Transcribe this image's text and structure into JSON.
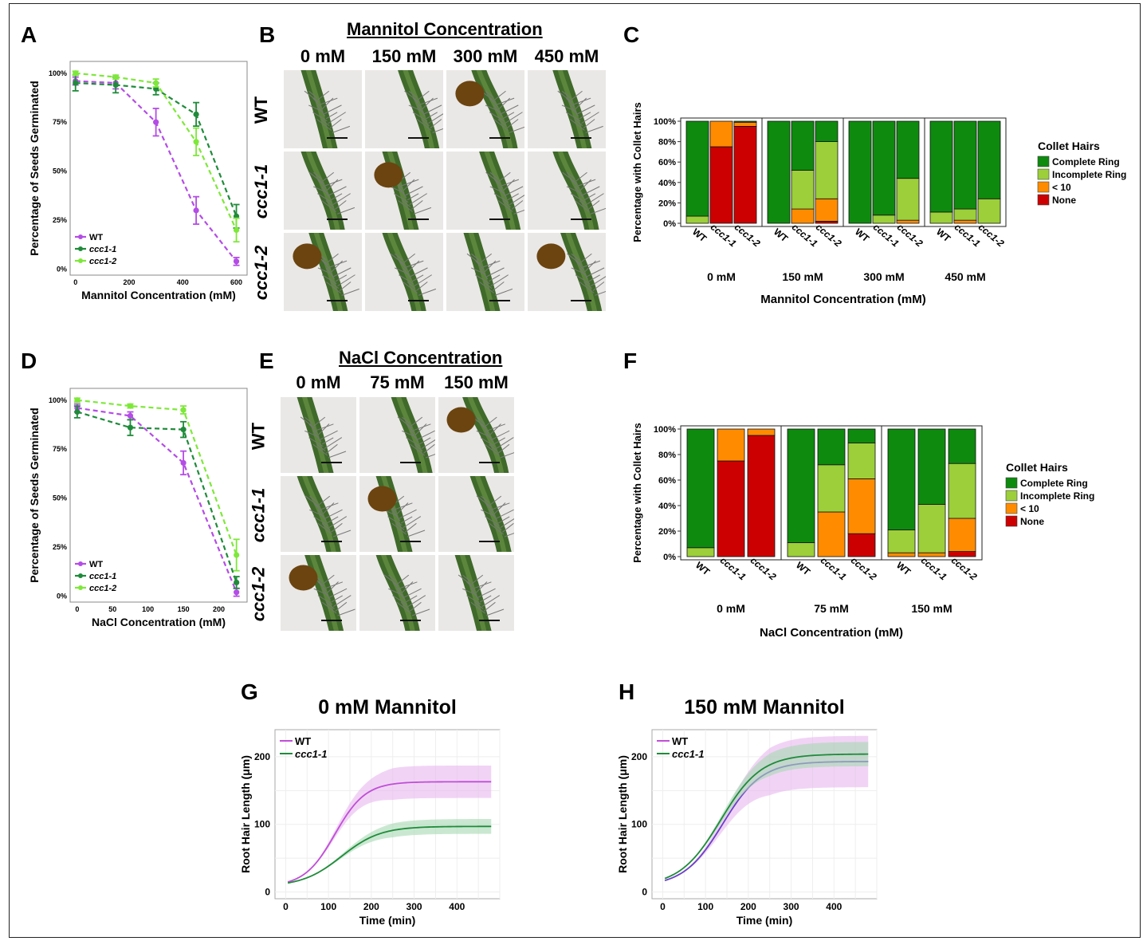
{
  "panel_labels": {
    "a": "A",
    "b": "B",
    "c": "C",
    "d": "D",
    "e": "E",
    "f": "F",
    "g": "G",
    "h": "H"
  },
  "colors": {
    "wt": "#b44ce6",
    "ccc11": "#1f8b3a",
    "ccc12": "#7ee83a",
    "complete": "#0e8a0e",
    "incomplete": "#9ccf3a",
    "lt10": "#ff8c00",
    "none": "#cc0000",
    "wt_ribbon": "#e7b8ef",
    "ccc_ribbon": "#a6d9b3"
  },
  "photo_b": {
    "title": "Mannitol Concentration",
    "cols": [
      "0 mM",
      "150 mM",
      "300 mM",
      "450 mM"
    ],
    "rows": [
      "WT",
      "ccc1-1",
      "ccc1-2"
    ]
  },
  "photo_e": {
    "title": "NaCl Concentration",
    "cols": [
      "0 mM",
      "75 mM",
      "150 mM"
    ],
    "rows": [
      "WT",
      "ccc1-1",
      "ccc1-2"
    ]
  },
  "chart_data": [
    {
      "id": "A",
      "type": "line",
      "xlabel": "Mannitol Concentration (mM)",
      "ylabel": "Percentage of Seeds Germinated",
      "xticks": [
        0,
        200,
        400,
        600
      ],
      "yticks": [
        "0%",
        "25%",
        "50%",
        "75%",
        "100%"
      ],
      "xlim": [
        -20,
        640
      ],
      "ylim": [
        -3,
        106
      ],
      "legend": [
        "WT",
        "ccc1-1",
        "ccc1-2"
      ],
      "series": [
        {
          "name": "WT",
          "x": [
            0,
            150,
            300,
            450,
            600
          ],
          "y": [
            96,
            95,
            75,
            30,
            4
          ],
          "err": [
            2,
            3,
            7,
            7,
            2
          ]
        },
        {
          "name": "ccc1-1",
          "x": [
            0,
            150,
            300,
            450,
            600
          ],
          "y": [
            95,
            94,
            92,
            79,
            27
          ],
          "err": [
            4,
            4,
            3,
            6,
            6
          ]
        },
        {
          "name": "ccc1-2",
          "x": [
            0,
            150,
            300,
            450,
            600
          ],
          "y": [
            100,
            98,
            95,
            65,
            20
          ],
          "err": [
            1,
            1,
            2,
            7,
            6
          ]
        }
      ]
    },
    {
      "id": "C",
      "type": "bar",
      "xlabel": "Mannitol Concentration (mM)",
      "ylabel": "Percentage with Collet Hairs",
      "yticks": [
        "0%",
        "20%",
        "40%",
        "60%",
        "80%",
        "100%"
      ],
      "legend_title": "Collet Hairs",
      "legend": [
        "Complete Ring",
        "Incomplete Ring",
        "< 10",
        "None"
      ],
      "groups": [
        "0 mM",
        "150 mM",
        "300 mM",
        "450 mM"
      ],
      "bars": [
        "WT",
        "ccc1-1",
        "ccc1-2"
      ],
      "stack_order": [
        "None",
        "< 10",
        "Incomplete Ring",
        "Complete Ring"
      ],
      "values": [
        [
          [
            0,
            0,
            7,
            93
          ],
          [
            75,
            25,
            0,
            0
          ],
          [
            95,
            4,
            0,
            1
          ]
        ],
        [
          [
            0,
            0,
            0,
            100
          ],
          [
            0,
            14,
            38,
            48
          ],
          [
            2,
            22,
            56,
            20
          ]
        ],
        [
          [
            0,
            0,
            0,
            100
          ],
          [
            0,
            0,
            8,
            92
          ],
          [
            0,
            3,
            41,
            56
          ]
        ],
        [
          [
            0,
            0,
            11,
            89
          ],
          [
            0,
            3,
            11,
            86
          ],
          [
            0,
            0,
            24,
            76
          ]
        ]
      ]
    },
    {
      "id": "D",
      "type": "line",
      "xlabel": "NaCl Concentration (mM)",
      "ylabel": "Percentage of Seeds Germinated",
      "xticks": [
        0,
        50,
        100,
        150,
        200
      ],
      "yticks": [
        "0%",
        "25%",
        "50%",
        "75%",
        "100%"
      ],
      "xlim": [
        -10,
        240
      ],
      "ylim": [
        -3,
        106
      ],
      "legend": [
        "WT",
        "ccc1-1",
        "ccc1-2"
      ],
      "series": [
        {
          "name": "WT",
          "x": [
            0,
            75,
            150,
            225
          ],
          "y": [
            96,
            92,
            68,
            2
          ],
          "err": [
            2,
            2,
            6,
            2
          ]
        },
        {
          "name": "ccc1-1",
          "x": [
            0,
            75,
            150,
            225
          ],
          "y": [
            94,
            86,
            85,
            7
          ],
          "err": [
            3,
            4,
            4,
            3
          ]
        },
        {
          "name": "ccc1-2",
          "x": [
            0,
            75,
            150,
            225
          ],
          "y": [
            100,
            97,
            95,
            21
          ],
          "err": [
            1,
            1,
            2,
            8
          ]
        }
      ]
    },
    {
      "id": "F",
      "type": "bar",
      "xlabel": "NaCl Concentration (mM)",
      "ylabel": "Percentage with Collet Hairs",
      "yticks": [
        "0%",
        "20%",
        "40%",
        "60%",
        "80%",
        "100%"
      ],
      "legend_title": "Collet Hairs",
      "legend": [
        "Complete Ring",
        "Incomplete Ring",
        "< 10",
        "None"
      ],
      "groups": [
        "0 mM",
        "75 mM",
        "150 mM"
      ],
      "bars": [
        "WT",
        "ccc1-1",
        "ccc1-2"
      ],
      "stack_order": [
        "None",
        "< 10",
        "Incomplete Ring",
        "Complete Ring"
      ],
      "values": [
        [
          [
            0,
            0,
            7,
            93
          ],
          [
            75,
            25,
            0,
            0
          ],
          [
            95,
            5,
            0,
            0
          ]
        ],
        [
          [
            0,
            0,
            11,
            89
          ],
          [
            0,
            35,
            37,
            28
          ],
          [
            18,
            43,
            28,
            11
          ]
        ],
        [
          [
            0,
            3,
            18,
            79
          ],
          [
            0,
            3,
            38,
            59
          ],
          [
            4,
            26,
            43,
            27
          ]
        ]
      ]
    },
    {
      "id": "G",
      "type": "line",
      "title": "0 mM Mannitol",
      "xlabel": "Time (min)",
      "ylabel": "Root Hair Length (μm)",
      "xticks": [
        0,
        100,
        200,
        300,
        400
      ],
      "yticks": [
        0,
        100,
        200
      ],
      "xlim": [
        -25,
        500
      ],
      "ylim": [
        -10,
        240
      ],
      "legend": [
        "WT",
        "ccc1-1"
      ],
      "series": [
        {
          "name": "WT",
          "plateau": 163,
          "k": 0.028,
          "x0": 115,
          "band": 24
        },
        {
          "name": "ccc1-1",
          "plateau": 97,
          "k": 0.022,
          "x0": 130,
          "band": 11
        }
      ]
    },
    {
      "id": "H",
      "type": "line",
      "title": "150 mM Mannitol",
      "xlabel": "Time (min)",
      "ylabel": "Root Hair Length (μm)",
      "xticks": [
        0,
        100,
        200,
        300,
        400
      ],
      "yticks": [
        0,
        100,
        200
      ],
      "xlim": [
        -25,
        500
      ],
      "ylim": [
        -10,
        240
      ],
      "legend": [
        "WT",
        "ccc1-1"
      ],
      "series": [
        {
          "name": "WT",
          "plateau": 193,
          "k": 0.022,
          "x0": 140,
          "band": 38
        },
        {
          "name": "ccc1-1",
          "plateau": 204,
          "k": 0.021,
          "x0": 135,
          "band": 18
        }
      ]
    }
  ]
}
